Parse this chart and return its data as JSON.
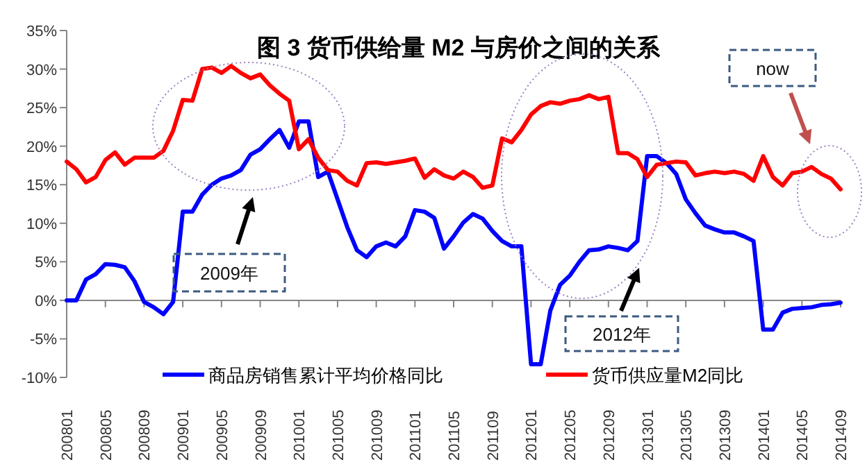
{
  "chart_data": {
    "type": "line",
    "title": "图 3 货币供给量 M2 与房价之间的关系",
    "categories": [
      "200801",
      null,
      null,
      null,
      "200805",
      null,
      null,
      null,
      "200809",
      null,
      null,
      null,
      "200901",
      null,
      null,
      null,
      "200905",
      null,
      null,
      null,
      "200909",
      null,
      null,
      null,
      "201001",
      null,
      null,
      null,
      "201005",
      null,
      null,
      null,
      "201009",
      null,
      null,
      null,
      "201101",
      null,
      null,
      null,
      "201105",
      null,
      null,
      null,
      "201109",
      null,
      null,
      null,
      "201201",
      null,
      null,
      null,
      "201205",
      null,
      null,
      null,
      "201209",
      null,
      null,
      null,
      "201301",
      null,
      null,
      null,
      "201305",
      null,
      null,
      null,
      "201309",
      null,
      null,
      null,
      "201401",
      null,
      null,
      null,
      "201405",
      null,
      null,
      null,
      "201409"
    ],
    "ylim": [
      -10,
      35
    ],
    "yticks": [
      {
        "value": -10,
        "label": "-10%"
      },
      {
        "value": -5,
        "label": "-5%"
      },
      {
        "value": 0,
        "label": "0%"
      },
      {
        "value": 5,
        "label": "5%"
      },
      {
        "value": 10,
        "label": "10%"
      },
      {
        "value": 15,
        "label": "15%"
      },
      {
        "value": 20,
        "label": "20%"
      },
      {
        "value": 25,
        "label": "25%"
      },
      {
        "value": 30,
        "label": "30%"
      },
      {
        "value": 35,
        "label": "35%"
      }
    ],
    "legend": "bottom",
    "series": [
      {
        "name": "商品房销售累计平均价格同比",
        "color": "#0000ff",
        "values": [
          0,
          0,
          2.7,
          3.4,
          4.7,
          4.6,
          4.3,
          2.5,
          -0.2,
          -0.9,
          -1.8,
          -0.2,
          11.5,
          11.5,
          13.7,
          15,
          15.8,
          16.2,
          16.9,
          18.9,
          19.6,
          20.9,
          22.1,
          19.8,
          23.2,
          23.2,
          16,
          16.7,
          13.1,
          9.5,
          6.5,
          5.6,
          7,
          7.5,
          7,
          8.3,
          11.7,
          11.5,
          10.7,
          6.7,
          8.3,
          10.1,
          11.2,
          10.6,
          9,
          7.7,
          7,
          7,
          -8.3,
          -8.3,
          -1.3,
          2,
          3.2,
          5,
          6.5,
          6.6,
          7,
          6.8,
          6.5,
          7.7,
          18.7,
          18.7,
          17.8,
          16.4,
          13.1,
          11.3,
          9.7,
          9.2,
          8.8,
          8.8,
          8.3,
          7.7,
          -3.8,
          -3.8,
          -1.6,
          -1.1,
          -1,
          -0.9,
          -0.6,
          -0.5,
          -0.3
        ]
      },
      {
        "name": "货币供应量M2同比",
        "color": "#ff0000",
        "values": [
          18,
          17,
          15.3,
          16,
          18.2,
          19.2,
          17.6,
          18.5,
          18.5,
          18.5,
          19.4,
          22,
          26,
          25.9,
          30,
          30.2,
          29.5,
          30.4,
          29.5,
          28.8,
          29.3,
          27.9,
          26.8,
          25.9,
          19.6,
          20.9,
          18.5,
          16.9,
          16.7,
          15.5,
          14.9,
          17.8,
          17.9,
          17.7,
          17.9,
          18.1,
          18.4,
          15.9,
          17,
          16.2,
          15.8,
          16.7,
          16,
          14.6,
          14.9,
          21,
          20.5,
          22.1,
          24.1,
          25.2,
          25.7,
          25.5,
          25.9,
          26.1,
          26.6,
          26.1,
          26.4,
          19.1,
          19.1,
          18.3,
          16,
          17.6,
          17.8,
          18,
          17.9,
          16.2,
          16.5,
          16.7,
          16.5,
          16.7,
          16.4,
          15.5,
          18.7,
          16,
          14.9,
          16.5,
          16.7,
          17.3,
          16.4,
          15.8,
          14.4
        ]
      }
    ],
    "annotations": [
      "2009年",
      "2012年",
      "now"
    ]
  }
}
